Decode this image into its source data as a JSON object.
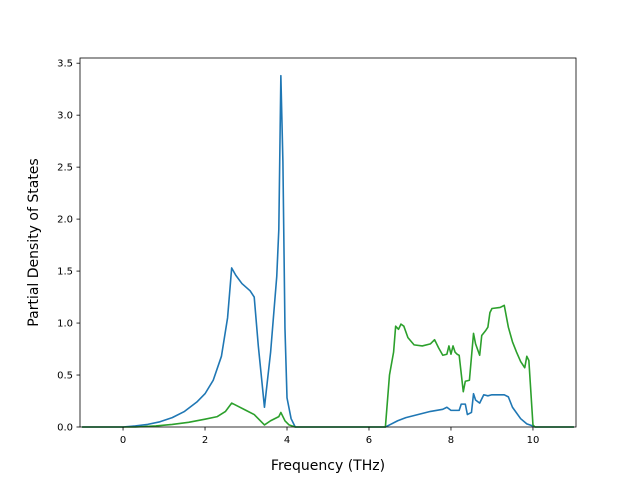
{
  "chart_data": {
    "type": "line",
    "title": "",
    "xlabel": "Frequency (THz)",
    "ylabel": "Partial Density of States",
    "xlim": [
      -1.05,
      11.05
    ],
    "ylim": [
      0,
      3.55
    ],
    "x_ticks": [
      0,
      2,
      4,
      6,
      8,
      10
    ],
    "x_tick_labels": [
      "0",
      "2",
      "4",
      "6",
      "8",
      "10"
    ],
    "y_ticks": [
      0.0,
      0.5,
      1.0,
      1.5,
      2.0,
      2.5,
      3.0,
      3.5
    ],
    "y_tick_labels": [
      "0.0",
      "0.5",
      "1.0",
      "1.5",
      "2.0",
      "2.5",
      "3.0",
      "3.5"
    ],
    "grid": false,
    "legend": "none",
    "series": [
      {
        "color": "#1f77b4",
        "points": [
          [
            -1.0,
            0.0
          ],
          [
            0.0,
            0.0
          ],
          [
            0.3,
            0.01
          ],
          [
            0.6,
            0.025
          ],
          [
            0.9,
            0.05
          ],
          [
            1.2,
            0.09
          ],
          [
            1.5,
            0.15
          ],
          [
            1.8,
            0.24
          ],
          [
            2.0,
            0.32
          ],
          [
            2.2,
            0.45
          ],
          [
            2.4,
            0.68
          ],
          [
            2.55,
            1.05
          ],
          [
            2.65,
            1.53
          ],
          [
            2.75,
            1.46
          ],
          [
            2.9,
            1.38
          ],
          [
            3.1,
            1.31
          ],
          [
            3.2,
            1.25
          ],
          [
            3.3,
            0.78
          ],
          [
            3.45,
            0.19
          ],
          [
            3.6,
            0.72
          ],
          [
            3.75,
            1.45
          ],
          [
            3.8,
            1.9
          ],
          [
            3.85,
            3.38
          ],
          [
            3.9,
            2.55
          ],
          [
            3.95,
            0.95
          ],
          [
            4.0,
            0.28
          ],
          [
            4.1,
            0.08
          ],
          [
            4.2,
            0.0
          ],
          [
            6.4,
            0.0
          ],
          [
            6.5,
            0.02
          ],
          [
            6.7,
            0.06
          ],
          [
            6.9,
            0.09
          ],
          [
            7.2,
            0.12
          ],
          [
            7.5,
            0.15
          ],
          [
            7.8,
            0.17
          ],
          [
            7.9,
            0.19
          ],
          [
            8.0,
            0.16
          ],
          [
            8.2,
            0.16
          ],
          [
            8.25,
            0.22
          ],
          [
            8.35,
            0.22
          ],
          [
            8.4,
            0.12
          ],
          [
            8.5,
            0.14
          ],
          [
            8.55,
            0.32
          ],
          [
            8.6,
            0.26
          ],
          [
            8.7,
            0.23
          ],
          [
            8.8,
            0.31
          ],
          [
            8.9,
            0.3
          ],
          [
            9.0,
            0.31
          ],
          [
            9.3,
            0.31
          ],
          [
            9.4,
            0.29
          ],
          [
            9.5,
            0.19
          ],
          [
            9.7,
            0.08
          ],
          [
            9.85,
            0.03
          ],
          [
            10.0,
            0.01
          ],
          [
            10.05,
            0.0
          ],
          [
            11.0,
            0.0
          ]
        ]
      },
      {
        "color": "#2ca02c",
        "points": [
          [
            -1.0,
            0.0
          ],
          [
            0.3,
            0.0
          ],
          [
            0.8,
            0.01
          ],
          [
            1.2,
            0.025
          ],
          [
            1.6,
            0.045
          ],
          [
            2.0,
            0.075
          ],
          [
            2.3,
            0.1
          ],
          [
            2.5,
            0.15
          ],
          [
            2.65,
            0.23
          ],
          [
            2.8,
            0.2
          ],
          [
            3.0,
            0.16
          ],
          [
            3.2,
            0.12
          ],
          [
            3.45,
            0.02
          ],
          [
            3.6,
            0.06
          ],
          [
            3.8,
            0.1
          ],
          [
            3.85,
            0.14
          ],
          [
            3.95,
            0.06
          ],
          [
            4.05,
            0.02
          ],
          [
            4.2,
            0.0
          ],
          [
            6.4,
            0.0
          ],
          [
            6.5,
            0.5
          ],
          [
            6.6,
            0.72
          ],
          [
            6.65,
            0.97
          ],
          [
            6.72,
            0.94
          ],
          [
            6.78,
            0.99
          ],
          [
            6.85,
            0.97
          ],
          [
            6.95,
            0.86
          ],
          [
            7.1,
            0.79
          ],
          [
            7.3,
            0.78
          ],
          [
            7.5,
            0.8
          ],
          [
            7.6,
            0.84
          ],
          [
            7.7,
            0.76
          ],
          [
            7.8,
            0.69
          ],
          [
            7.9,
            0.7
          ],
          [
            7.95,
            0.78
          ],
          [
            8.0,
            0.7
          ],
          [
            8.05,
            0.78
          ],
          [
            8.1,
            0.72
          ],
          [
            8.15,
            0.7
          ],
          [
            8.2,
            0.69
          ],
          [
            8.3,
            0.34
          ],
          [
            8.35,
            0.44
          ],
          [
            8.45,
            0.45
          ],
          [
            8.55,
            0.9
          ],
          [
            8.6,
            0.8
          ],
          [
            8.7,
            0.69
          ],
          [
            8.75,
            0.88
          ],
          [
            8.85,
            0.93
          ],
          [
            8.9,
            0.96
          ],
          [
            8.95,
            1.1
          ],
          [
            9.0,
            1.14
          ],
          [
            9.2,
            1.15
          ],
          [
            9.3,
            1.17
          ],
          [
            9.4,
            0.96
          ],
          [
            9.5,
            0.82
          ],
          [
            9.6,
            0.72
          ],
          [
            9.7,
            0.63
          ],
          [
            9.8,
            0.57
          ],
          [
            9.85,
            0.68
          ],
          [
            9.9,
            0.64
          ],
          [
            10.0,
            0.02
          ],
          [
            10.05,
            0.0
          ],
          [
            11.0,
            0.0
          ]
        ]
      }
    ]
  }
}
